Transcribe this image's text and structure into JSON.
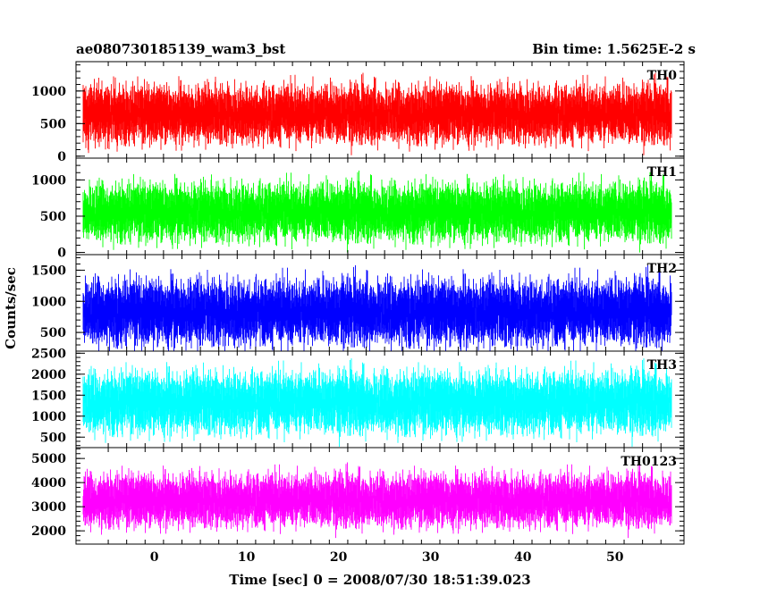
{
  "chart_data": {
    "type": "line",
    "title": "ae080730185139_wam3_bst",
    "subtitle": "Bin time: 1.5625E-2 s",
    "xlabel": "Time [sec] 0 = 2008/07/30 18:51:39.023",
    "ylabel": "Counts/sec",
    "xlim": [
      -8.5,
      57.5
    ],
    "x_ticks": [
      0,
      10,
      20,
      30,
      40,
      50
    ],
    "x_start": -7.8,
    "x_end": 56.2,
    "bin_time": 0.015625,
    "grid": false,
    "panels": [
      {
        "name": "TH0",
        "color": "#ff0000",
        "ylim": [
          -30,
          1450
        ],
        "y_ticks": [
          0,
          500,
          1000
        ],
        "mean": 650,
        "spread": 210,
        "floor": 0,
        "ceiling": 1450
      },
      {
        "name": "TH1",
        "color": "#00ff00",
        "ylim": [
          -30,
          1300
        ],
        "y_ticks": [
          0,
          500,
          1000
        ],
        "mean": 560,
        "spread": 190,
        "floor": 0,
        "ceiling": 1300
      },
      {
        "name": "TH2",
        "color": "#0000ff",
        "ylim": [
          200,
          1750
        ],
        "y_ticks": [
          500,
          1000,
          1500
        ],
        "mean": 830,
        "spread": 250,
        "floor": 200,
        "ceiling": 1750
      },
      {
        "name": "TH3",
        "color": "#00ffff",
        "ylim": [
          250,
          2550
        ],
        "y_ticks": [
          500,
          1000,
          1500,
          2000,
          2500
        ],
        "mean": 1330,
        "spread": 350,
        "floor": 250,
        "ceiling": 2550
      },
      {
        "name": "TH0123",
        "color": "#ff00ff",
        "ylim": [
          1450,
          5450
        ],
        "y_ticks": [
          2000,
          3000,
          4000,
          5000
        ],
        "mean": 3280,
        "spread": 520,
        "floor": 1450,
        "ceiling": 5450
      }
    ]
  }
}
